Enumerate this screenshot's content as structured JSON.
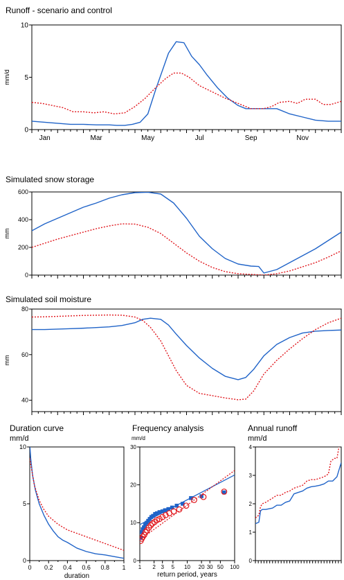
{
  "colors": {
    "scenario": "#1f63c8",
    "control": "#e0151b",
    "frame": "#000000"
  },
  "chart_data": [
    {
      "id": "runoff",
      "type": "line",
      "title": "Runoff - scenario and control",
      "ylabel": "mm/d",
      "xlabel": "",
      "xlim": [
        0,
        12
      ],
      "ylim": [
        0,
        10
      ],
      "yticks": [
        0,
        5,
        10
      ],
      "xtick_labels": [
        "Jan",
        "Mar",
        "May",
        "Jul",
        "Sep",
        "Nov"
      ],
      "xtick_positions": [
        0.5,
        2.5,
        4.5,
        6.5,
        8.5,
        10.5
      ],
      "series": [
        {
          "style": "solid",
          "color": "#1f63c8",
          "x": [
            0,
            0.5,
            1,
            1.5,
            2,
            2.5,
            3,
            3.3,
            3.6,
            3.9,
            4.2,
            4.5,
            4.8,
            5.0,
            5.3,
            5.6,
            5.9,
            6.2,
            6.5,
            6.8,
            7.2,
            7.6,
            8.0,
            8.3,
            8.6,
            9.0,
            9.5,
            10.0,
            10.5,
            11.0,
            11.5,
            12.0
          ],
          "y": [
            0.8,
            0.7,
            0.6,
            0.5,
            0.5,
            0.45,
            0.45,
            0.4,
            0.4,
            0.5,
            0.7,
            1.5,
            3.8,
            5.2,
            7.3,
            8.4,
            8.3,
            7.0,
            6.2,
            5.2,
            4.0,
            3.0,
            2.3,
            2.0,
            2.0,
            2.0,
            2.0,
            1.5,
            1.2,
            0.9,
            0.8,
            0.8
          ]
        },
        {
          "style": "dotted",
          "color": "#e0151b",
          "x": [
            0,
            0.4,
            0.8,
            1.2,
            1.6,
            2.0,
            2.4,
            2.8,
            3.2,
            3.6,
            4.0,
            4.4,
            4.8,
            5.2,
            5.5,
            5.8,
            6.1,
            6.5,
            7.0,
            7.5,
            8.0,
            8.5,
            9.0,
            9.3,
            9.6,
            10.0,
            10.3,
            10.6,
            11.0,
            11.3,
            11.6,
            12.0
          ],
          "y": [
            2.6,
            2.5,
            2.3,
            2.1,
            1.7,
            1.7,
            1.6,
            1.7,
            1.5,
            1.6,
            2.2,
            3.0,
            4.0,
            4.9,
            5.4,
            5.4,
            5.0,
            4.2,
            3.6,
            3.0,
            2.5,
            2.0,
            2.0,
            2.2,
            2.6,
            2.7,
            2.5,
            2.9,
            2.9,
            2.4,
            2.4,
            2.7
          ]
        }
      ]
    },
    {
      "id": "snow",
      "type": "line",
      "title": "Simulated snow storage",
      "ylabel": "mm",
      "xlim": [
        0,
        12
      ],
      "ylim": [
        0,
        600
      ],
      "yticks": [
        0,
        200,
        400,
        600
      ],
      "series": [
        {
          "style": "solid",
          "color": "#1f63c8",
          "x": [
            0,
            0.5,
            1,
            1.5,
            2,
            2.5,
            3,
            3.5,
            4,
            4.5,
            5,
            5.5,
            6,
            6.5,
            7,
            7.5,
            8,
            8.5,
            8.8,
            9.0,
            9.5,
            10,
            10.5,
            11,
            11.5,
            12.0
          ],
          "y": [
            320,
            370,
            410,
            450,
            490,
            520,
            555,
            580,
            595,
            598,
            585,
            520,
            410,
            280,
            190,
            120,
            80,
            65,
            62,
            15,
            40,
            90,
            140,
            190,
            250,
            310
          ]
        },
        {
          "style": "dotted",
          "color": "#e0151b",
          "x": [
            0,
            0.5,
            1,
            1.5,
            2,
            2.5,
            3,
            3.5,
            4,
            4.5,
            5,
            5.5,
            6,
            6.5,
            7,
            7.5,
            8,
            8.5,
            9.0,
            9.5,
            10,
            10.5,
            11,
            11.5,
            12.0
          ],
          "y": [
            200,
            230,
            260,
            285,
            310,
            335,
            355,
            370,
            368,
            345,
            300,
            230,
            160,
            100,
            55,
            25,
            10,
            5,
            0,
            10,
            30,
            60,
            90,
            130,
            175
          ]
        }
      ]
    },
    {
      "id": "soil",
      "type": "line",
      "title": "Simulated soil moisture",
      "ylabel": "mm",
      "xlim": [
        0,
        12
      ],
      "ylim": [
        35,
        80
      ],
      "yticks": [
        40,
        60,
        80
      ],
      "series": [
        {
          "style": "solid",
          "color": "#1f63c8",
          "x": [
            0,
            0.5,
            1,
            1.5,
            2,
            2.5,
            3,
            3.5,
            4,
            4.3,
            4.6,
            5.0,
            5.3,
            5.6,
            6.0,
            6.5,
            7.0,
            7.5,
            8.0,
            8.3,
            8.6,
            9.0,
            9.5,
            10,
            10.5,
            11,
            11.5,
            12.0
          ],
          "y": [
            71,
            71,
            71.2,
            71.4,
            71.6,
            71.9,
            72.2,
            72.8,
            74,
            75.5,
            76,
            75.5,
            73,
            69,
            64,
            58.5,
            54,
            50.5,
            49,
            50,
            53.5,
            59.5,
            64.5,
            67.5,
            69.5,
            70.3,
            70.6,
            70.8
          ]
        },
        {
          "style": "dotted",
          "color": "#e0151b",
          "x": [
            0,
            0.5,
            1,
            1.5,
            2,
            2.5,
            3,
            3.5,
            4,
            4.3,
            4.6,
            5.0,
            5.3,
            5.6,
            6.0,
            6.5,
            7.0,
            7.5,
            8.0,
            8.3,
            8.6,
            9.0,
            9.5,
            10,
            10.5,
            11,
            11.5,
            12.0
          ],
          "y": [
            76.5,
            76.6,
            76.8,
            77,
            77.2,
            77.3,
            77.4,
            77.3,
            76.5,
            75,
            72,
            66,
            59.5,
            53,
            46.5,
            43,
            42,
            41,
            40.2,
            40.5,
            44,
            51.5,
            57.5,
            62.5,
            67,
            71,
            74,
            76
          ]
        }
      ]
    },
    {
      "id": "duration",
      "type": "line",
      "title": "Duration curve",
      "subtitle": "mm/d",
      "xlabel": "duration",
      "xlim": [
        0,
        1
      ],
      "ylim": [
        0,
        10
      ],
      "yticks": [
        0,
        5,
        10
      ],
      "xticks": [
        0,
        0.2,
        0.4,
        0.6,
        0.8,
        1
      ],
      "series": [
        {
          "style": "solid",
          "color": "#1f63c8",
          "x": [
            0,
            0.01,
            0.03,
            0.06,
            0.1,
            0.15,
            0.2,
            0.25,
            0.3,
            0.35,
            0.4,
            0.5,
            0.6,
            0.7,
            0.8,
            0.9,
            1.0
          ],
          "y": [
            10.2,
            9.0,
            7.5,
            6.2,
            5.0,
            4.0,
            3.2,
            2.6,
            2.1,
            1.8,
            1.6,
            1.1,
            0.8,
            0.6,
            0.5,
            0.35,
            0.2
          ]
        },
        {
          "style": "dotted",
          "color": "#e0151b",
          "x": [
            0,
            0.02,
            0.05,
            0.1,
            0.15,
            0.2,
            0.3,
            0.4,
            0.5,
            0.6,
            0.7,
            0.8,
            0.9,
            1.0
          ],
          "y": [
            9.0,
            8.0,
            6.6,
            5.3,
            4.5,
            3.9,
            3.2,
            2.7,
            2.4,
            2.1,
            1.8,
            1.5,
            1.2,
            0.9
          ]
        }
      ]
    },
    {
      "id": "frequency",
      "type": "scatter",
      "title": "Frequency analysis",
      "subtitle": "mm/d",
      "xlabel": "return period, years",
      "xscale": "log",
      "xlim": [
        1,
        100
      ],
      "ylim": [
        0,
        30
      ],
      "yticks": [
        0,
        10,
        20,
        30
      ],
      "xtick_values": [
        1,
        2,
        3,
        5,
        10,
        20,
        30,
        50,
        100
      ],
      "xtick_labels": [
        "1",
        "2",
        "3",
        "5",
        "10",
        "20",
        "30",
        "50",
        "100"
      ],
      "fit_lines": [
        {
          "color": "#1f63c8",
          "style": "solid",
          "x": [
            1,
            100
          ],
          "y": [
            9.5,
            22.6
          ]
        },
        {
          "color": "#e0151b",
          "style": "dotted",
          "x": [
            1,
            100
          ],
          "y": [
            5.5,
            23.8
          ]
        }
      ],
      "series": [
        {
          "marker": "square",
          "color": "#1f63c8",
          "x": [
            1.04,
            1.1,
            1.15,
            1.22,
            1.3,
            1.4,
            1.5,
            1.62,
            1.75,
            1.9,
            2.1,
            2.3,
            2.6,
            3.0,
            3.4,
            4.0,
            4.8,
            6.0,
            8.0,
            12,
            20,
            60
          ],
          "y": [
            6.0,
            7.5,
            8.3,
            8.8,
            9.5,
            10.0,
            10.5,
            11.0,
            11.5,
            11.8,
            12.3,
            12.5,
            12.8,
            13.0,
            13.3,
            13.6,
            14.0,
            14.5,
            15.0,
            16.5,
            17.0,
            18.0
          ]
        },
        {
          "marker": "circle",
          "color": "#e0151b",
          "x": [
            1.04,
            1.1,
            1.16,
            1.24,
            1.32,
            1.42,
            1.55,
            1.7,
            1.85,
            2.05,
            2.3,
            2.6,
            3.0,
            3.5,
            4.2,
            5.2,
            6.8,
            9.5,
            14,
            22,
            60
          ],
          "y": [
            5.2,
            5.8,
            6.3,
            6.8,
            7.5,
            8.0,
            8.7,
            9.3,
            9.8,
            10.2,
            10.7,
            11.0,
            11.5,
            12.0,
            12.5,
            13.0,
            13.5,
            14.5,
            16.0,
            16.8,
            18.2
          ]
        }
      ]
    },
    {
      "id": "annual",
      "type": "line",
      "title": "Annual runoff",
      "subtitle": "mm/d",
      "ylim": [
        0,
        4
      ],
      "yticks": [
        0,
        1,
        2,
        3,
        4
      ],
      "xlim": [
        0,
        1
      ],
      "series": [
        {
          "style": "solid",
          "color": "#1f63c8",
          "x": [
            0,
            0.04,
            0.06,
            0.08,
            0.12,
            0.2,
            0.25,
            0.3,
            0.35,
            0.4,
            0.45,
            0.5,
            0.55,
            0.6,
            0.65,
            0.7,
            0.75,
            0.8,
            0.85,
            0.9,
            0.95,
            0.97,
            1.0
          ],
          "y": [
            1.3,
            1.35,
            1.75,
            1.8,
            1.8,
            1.85,
            1.95,
            1.95,
            2.05,
            2.1,
            2.35,
            2.4,
            2.45,
            2.55,
            2.6,
            2.62,
            2.65,
            2.7,
            2.8,
            2.8,
            2.95,
            3.15,
            3.45
          ]
        },
        {
          "style": "dotted",
          "color": "#e0151b",
          "x": [
            0,
            0.04,
            0.06,
            0.08,
            0.12,
            0.2,
            0.25,
            0.3,
            0.35,
            0.4,
            0.45,
            0.5,
            0.55,
            0.6,
            0.65,
            0.7,
            0.75,
            0.8,
            0.85,
            0.88,
            0.92,
            0.95,
            0.98,
            1.0
          ],
          "y": [
            1.5,
            1.6,
            1.9,
            2.0,
            2.05,
            2.2,
            2.3,
            2.3,
            2.4,
            2.45,
            2.55,
            2.6,
            2.65,
            2.8,
            2.85,
            2.85,
            2.9,
            2.95,
            3.05,
            3.5,
            3.6,
            3.6,
            4.1,
            4.15
          ]
        }
      ]
    }
  ]
}
